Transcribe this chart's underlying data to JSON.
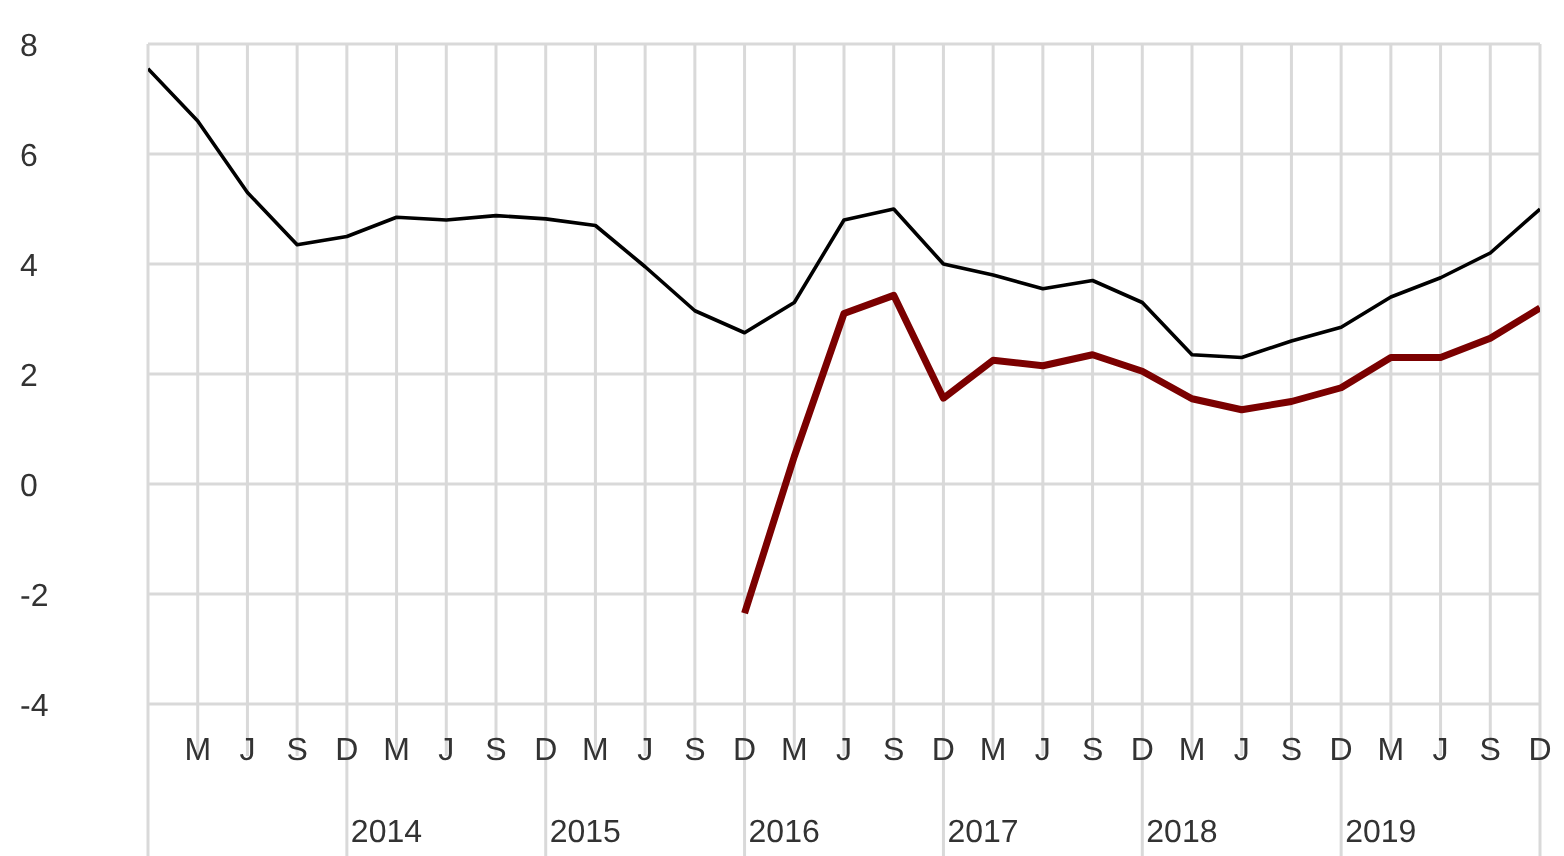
{
  "chart_data": {
    "type": "line",
    "categories": [
      null,
      "M",
      "J",
      "S",
      "D",
      "M",
      "J",
      "S",
      "D",
      "M",
      "J",
      "S",
      "D",
      "M",
      "J",
      "S",
      "D",
      "M",
      "J",
      "S",
      "D",
      "M",
      "J",
      "S",
      "D",
      "M",
      "J",
      "S",
      "D"
    ],
    "series": [
      {
        "color": "#000000",
        "values": [
          7.55,
          6.6,
          5.3,
          4.35,
          4.5,
          4.85,
          4.8,
          4.88,
          4.82,
          4.7,
          3.95,
          3.15,
          2.75,
          3.3,
          4.8,
          5.0,
          4.0,
          3.8,
          3.55,
          3.7,
          3.3,
          2.35,
          2.3,
          2.6,
          2.85,
          3.4,
          3.75,
          4.2,
          5.0
        ]
      },
      {
        "color": "#7b0000",
        "values": [
          null,
          null,
          null,
          null,
          null,
          null,
          null,
          null,
          null,
          null,
          null,
          null,
          -2.35,
          0.5,
          3.1,
          3.43,
          1.56,
          2.25,
          2.15,
          2.35,
          2.05,
          1.55,
          1.35,
          1.5,
          1.75,
          2.3,
          2.3,
          2.65,
          3.2
        ]
      }
    ],
    "annotations": [
      "2014",
      "2015",
      "2016",
      "2017",
      "2018",
      "2019"
    ],
    "ylim": [
      -4,
      8
    ],
    "yticks": [
      -4,
      -2,
      0,
      2,
      4,
      6,
      8
    ],
    "grid": true,
    "legend": false
  }
}
